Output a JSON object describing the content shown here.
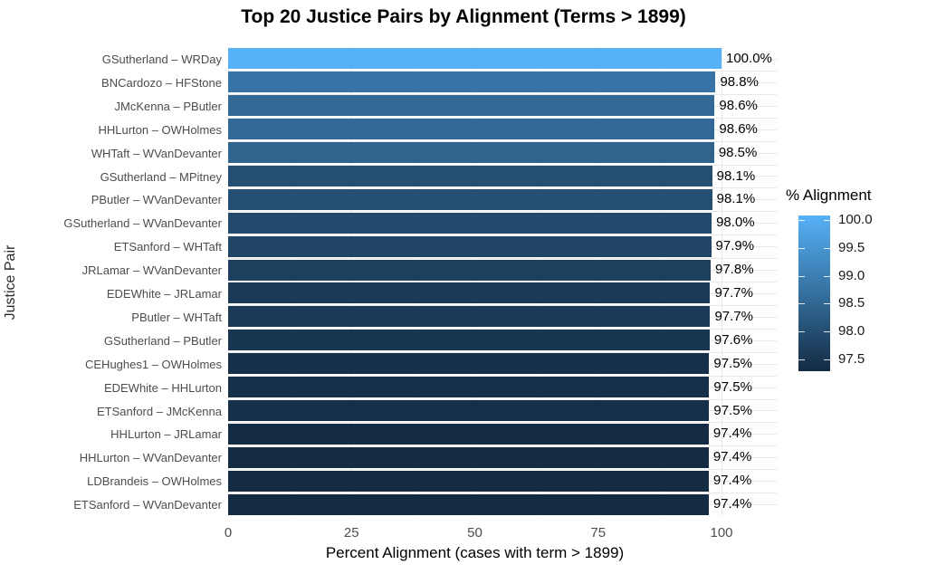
{
  "chart_data": {
    "type": "bar",
    "orientation": "horizontal",
    "title": "Top 20 Justice Pairs by Alignment (Terms > 1899)",
    "xlabel": "Percent Alignment (cases with term > 1899)",
    "ylabel": "Justice Pair",
    "xlim": [
      0,
      100
    ],
    "x_ticks": [
      0,
      25,
      50,
      75,
      100
    ],
    "x_minor_ticks": [
      12.5,
      37.5,
      62.5,
      87.5
    ],
    "grid": true,
    "background": "#FFFFFF",
    "grid_color": "#E9E9E9",
    "pairs": [
      {
        "label": "GSutherland – WRDay",
        "value": 100.0,
        "display": "100.0%"
      },
      {
        "label": "BNCardozo – HFStone",
        "value": 98.8,
        "display": "98.8%"
      },
      {
        "label": "JMcKenna – PButler",
        "value": 98.6,
        "display": "98.6%"
      },
      {
        "label": "HHLurton – OWHolmes",
        "value": 98.6,
        "display": "98.6%"
      },
      {
        "label": "WHTaft – WVanDevanter",
        "value": 98.5,
        "display": "98.5%"
      },
      {
        "label": "GSutherland – MPitney",
        "value": 98.1,
        "display": "98.1%"
      },
      {
        "label": "PButler – WVanDevanter",
        "value": 98.1,
        "display": "98.1%"
      },
      {
        "label": "GSutherland – WVanDevanter",
        "value": 98.0,
        "display": "98.0%"
      },
      {
        "label": "ETSanford – WHTaft",
        "value": 97.9,
        "display": "97.9%"
      },
      {
        "label": "JRLamar – WVanDevanter",
        "value": 97.8,
        "display": "97.8%"
      },
      {
        "label": "EDEWhite – JRLamar",
        "value": 97.7,
        "display": "97.7%"
      },
      {
        "label": "PButler – WHTaft",
        "value": 97.7,
        "display": "97.7%"
      },
      {
        "label": "GSutherland – PButler",
        "value": 97.6,
        "display": "97.6%"
      },
      {
        "label": "CEHughes1 – OWHolmes",
        "value": 97.5,
        "display": "97.5%"
      },
      {
        "label": "EDEWhite – HHLurton",
        "value": 97.5,
        "display": "97.5%"
      },
      {
        "label": "ETSanford – JMcKenna",
        "value": 97.5,
        "display": "97.5%"
      },
      {
        "label": "HHLurton – JRLamar",
        "value": 97.4,
        "display": "97.4%"
      },
      {
        "label": "HHLurton – WVanDevanter",
        "value": 97.4,
        "display": "97.4%"
      },
      {
        "label": "LDBrandeis – OWHolmes",
        "value": 97.4,
        "display": "97.4%"
      },
      {
        "label": "ETSanford – WVanDevanter",
        "value": 97.4,
        "display": "97.4%"
      }
    ],
    "fill": {
      "low_color": "#132B43",
      "high_color": "#56B1F7",
      "domain": [
        97.4,
        100.0
      ]
    },
    "legend": {
      "title": "% Alignment",
      "position": "right",
      "tick_labels": [
        "100.0",
        "99.5",
        "99.0",
        "98.5",
        "98.0",
        "97.5"
      ],
      "tick_values": [
        100.0,
        99.5,
        99.0,
        98.5,
        98.0,
        97.5
      ]
    }
  }
}
